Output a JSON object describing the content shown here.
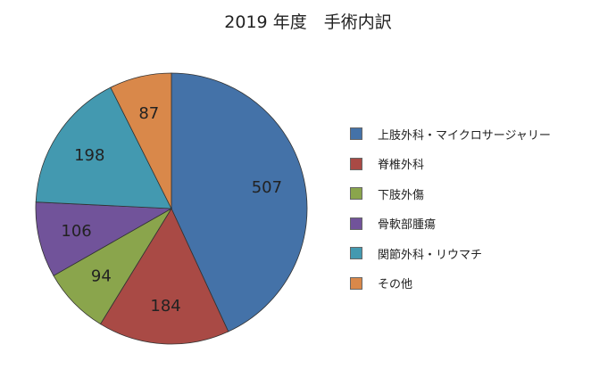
{
  "chart_data": {
    "type": "pie",
    "title": "2019 年度　手術内訳",
    "categories": [
      "上肢外科・マイクロサージャリー",
      "脊椎外科",
      "下肢外傷",
      "骨軟部腫瘍",
      "関節外科・リウマチ",
      "その他"
    ],
    "values": [
      507,
      184,
      94,
      106,
      198,
      87
    ],
    "colors": [
      "#4472a8",
      "#a94a45",
      "#8aa54c",
      "#71539a",
      "#4399b0",
      "#d9884a"
    ],
    "legend_position": "right",
    "start_angle": "top",
    "direction": "clockwise"
  }
}
